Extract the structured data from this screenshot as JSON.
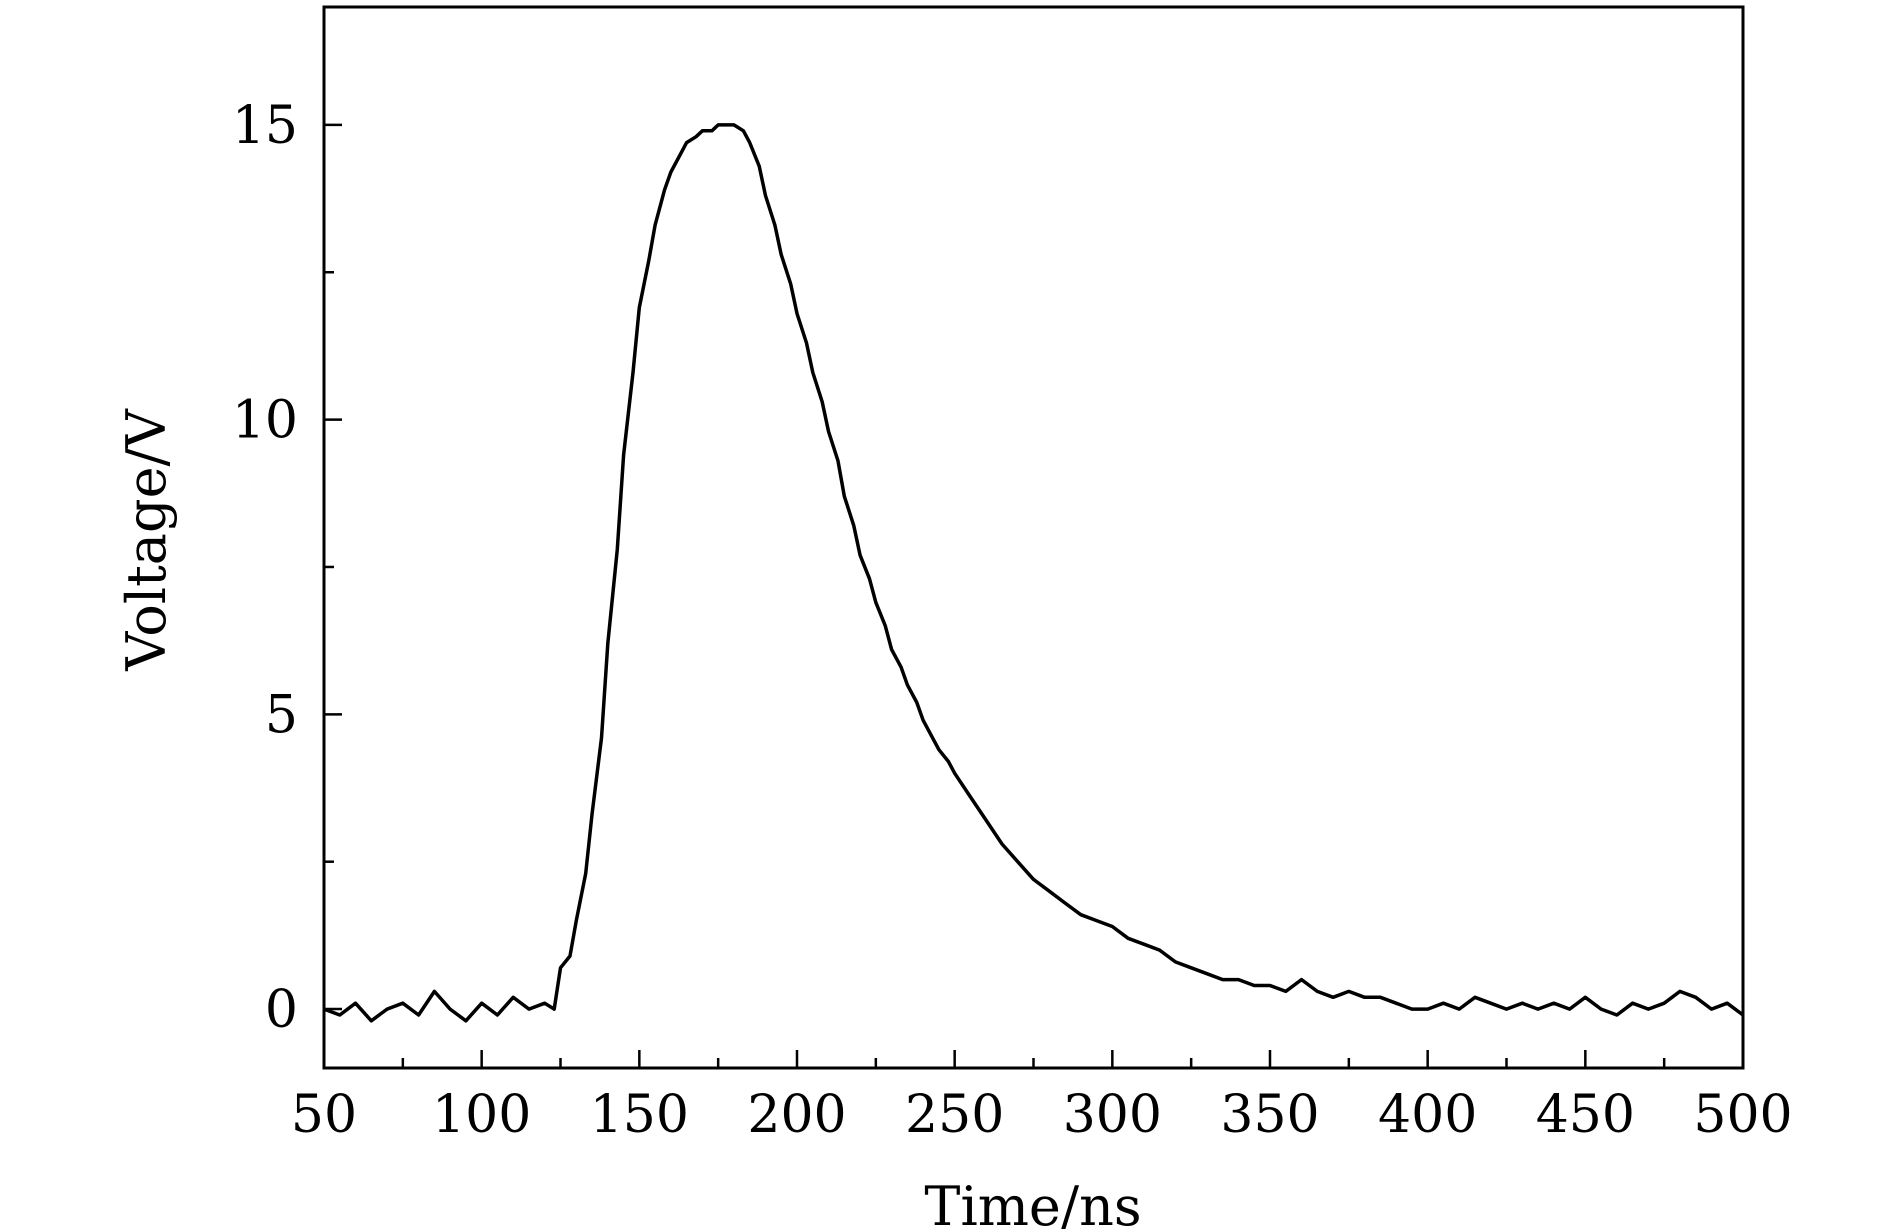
{
  "chart_data": {
    "type": "line",
    "title": "",
    "xlabel": "Time/ns",
    "ylabel": "Voltage/V",
    "xlim": [
      50,
      500
    ],
    "ylim": [
      -1,
      17
    ],
    "x_ticks": [
      50,
      100,
      150,
      200,
      250,
      300,
      350,
      400,
      450,
      500
    ],
    "x_tick_labels": [
      "50",
      "100",
      "150",
      "200",
      "250",
      "300",
      "350",
      "400",
      "450",
      "500"
    ],
    "y_ticks": [
      0,
      5,
      10,
      15
    ],
    "y_tick_labels": [
      "0",
      "5",
      "10",
      "15"
    ],
    "grid": false,
    "legend": "none",
    "series": [
      {
        "color": "#000000",
        "x": [
          50,
          55,
          60,
          65,
          70,
          75,
          80,
          85,
          90,
          95,
          100,
          105,
          110,
          115,
          120,
          123,
          125,
          128,
          130,
          133,
          135,
          138,
          140,
          143,
          145,
          148,
          150,
          153,
          155,
          158,
          160,
          163,
          165,
          168,
          170,
          173,
          175,
          178,
          180,
          183,
          185,
          188,
          190,
          193,
          195,
          198,
          200,
          203,
          205,
          208,
          210,
          213,
          215,
          218,
          220,
          223,
          225,
          228,
          230,
          233,
          235,
          238,
          240,
          243,
          245,
          248,
          250,
          255,
          260,
          265,
          270,
          275,
          280,
          285,
          290,
          295,
          300,
          305,
          310,
          315,
          320,
          325,
          330,
          335,
          340,
          345,
          350,
          355,
          360,
          365,
          370,
          375,
          380,
          385,
          390,
          395,
          400,
          405,
          410,
          415,
          420,
          425,
          430,
          435,
          440,
          445,
          450,
          455,
          460,
          465,
          470,
          475,
          480,
          485,
          490,
          495,
          500
        ],
        "y": [
          0.0,
          -0.1,
          0.1,
          -0.2,
          0.0,
          0.1,
          -0.1,
          0.3,
          0.0,
          -0.2,
          0.1,
          -0.1,
          0.2,
          0.0,
          0.1,
          0.0,
          0.7,
          0.9,
          1.5,
          2.3,
          3.3,
          4.6,
          6.2,
          7.8,
          9.4,
          10.8,
          11.9,
          12.7,
          13.3,
          13.9,
          14.2,
          14.5,
          14.7,
          14.8,
          14.9,
          14.9,
          15.0,
          15.0,
          15.0,
          14.9,
          14.7,
          14.3,
          13.8,
          13.3,
          12.8,
          12.3,
          11.8,
          11.3,
          10.8,
          10.3,
          9.8,
          9.3,
          8.7,
          8.2,
          7.7,
          7.3,
          6.9,
          6.5,
          6.1,
          5.8,
          5.5,
          5.2,
          4.9,
          4.6,
          4.4,
          4.2,
          4.0,
          3.6,
          3.2,
          2.8,
          2.5,
          2.2,
          2.0,
          1.8,
          1.6,
          1.5,
          1.4,
          1.2,
          1.1,
          1.0,
          0.8,
          0.7,
          0.6,
          0.5,
          0.5,
          0.4,
          0.4,
          0.3,
          0.5,
          0.3,
          0.2,
          0.3,
          0.2,
          0.2,
          0.1,
          0.0,
          0.0,
          0.1,
          0.0,
          0.2,
          0.1,
          0.0,
          0.1,
          0.0,
          0.1,
          0.0,
          0.2,
          0.0,
          -0.1,
          0.1,
          0.0,
          0.1,
          0.3,
          0.2,
          0.0,
          0.1,
          -0.1
        ]
      }
    ]
  }
}
